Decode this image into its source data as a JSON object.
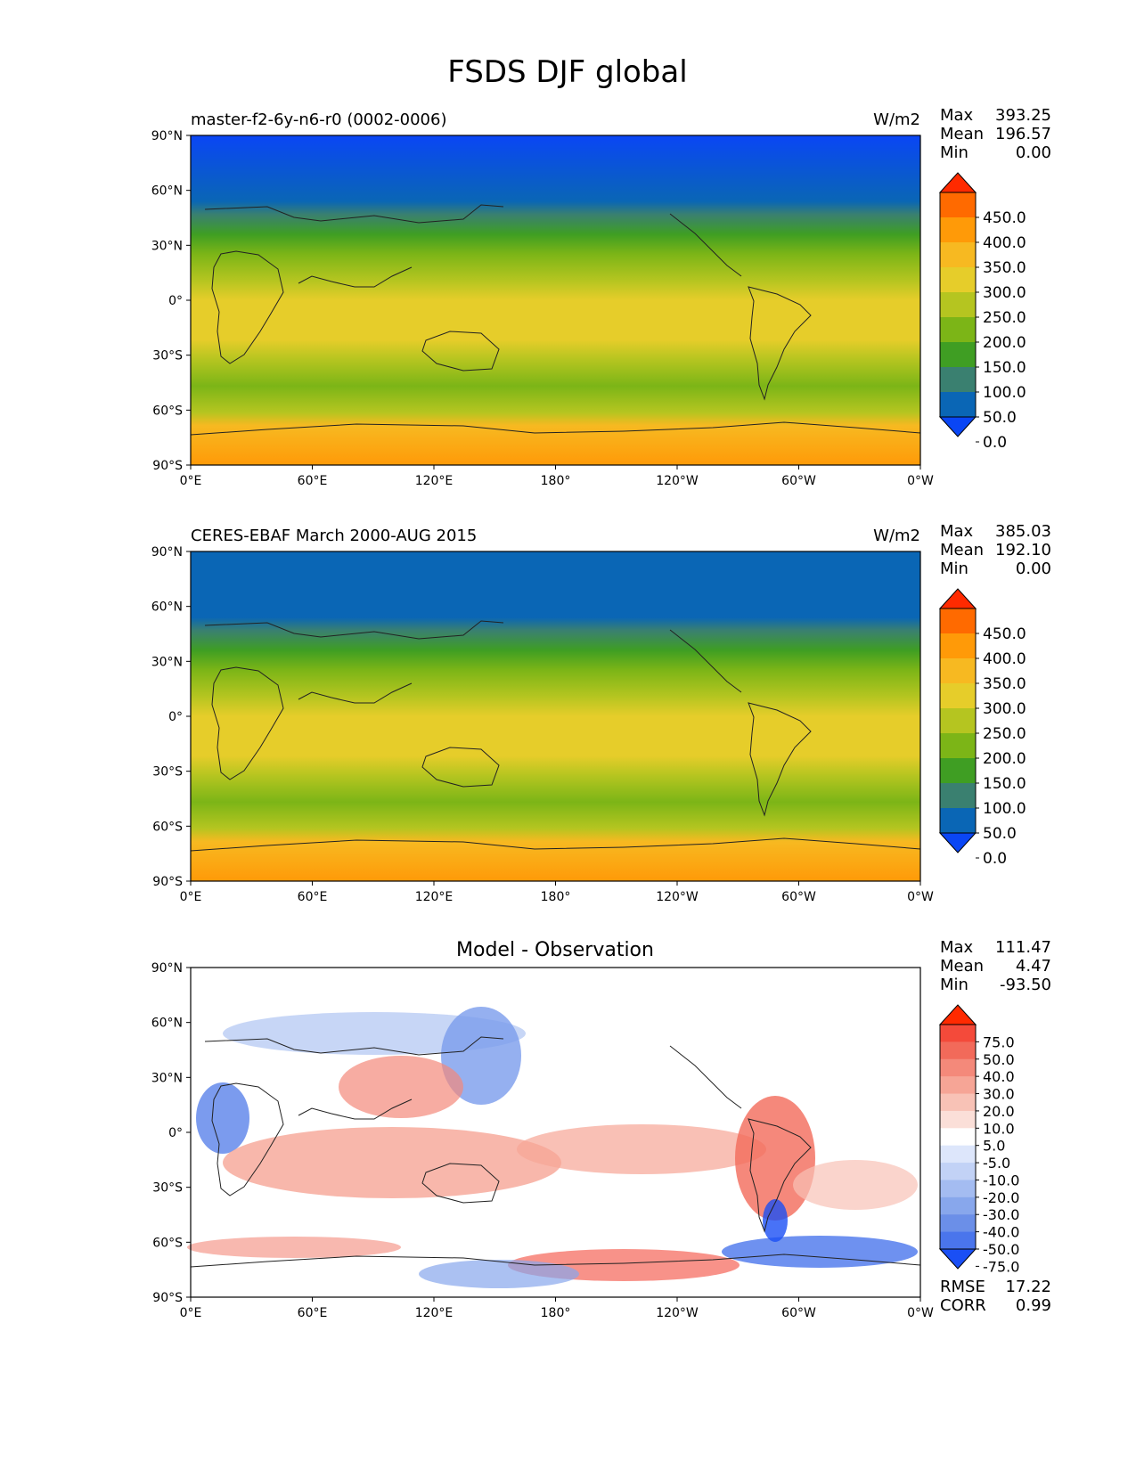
{
  "title": "FSDS DJF global",
  "units": "W/m2",
  "lat_ticks": [
    "90°N",
    "60°N",
    "30°N",
    "0°",
    "30°S",
    "60°S",
    "90°S"
  ],
  "lon_ticks": [
    "0°E",
    "60°E",
    "120°E",
    "180°",
    "120°W",
    "60°W",
    "0°W"
  ],
  "panels": [
    {
      "id": "model",
      "title": "master-f2-6y-n6-r0 (0002-0006)",
      "stats": [
        {
          "label": "Max",
          "value": "393.25"
        },
        {
          "label": "Mean",
          "value": "196.57"
        },
        {
          "label": "Min",
          "value": "0.00"
        }
      ]
    },
    {
      "id": "obs",
      "title": "CERES-EBAF March 2000-AUG 2015",
      "stats": [
        {
          "label": "Max",
          "value": "385.03"
        },
        {
          "label": "Mean",
          "value": "192.10"
        },
        {
          "label": "Min",
          "value": "0.00"
        }
      ]
    },
    {
      "id": "diff",
      "title": "Model - Observation",
      "stats": [
        {
          "label": "Max",
          "value": "111.47"
        },
        {
          "label": "Mean",
          "value": "4.47"
        },
        {
          "label": "Min",
          "value": "-93.50"
        }
      ],
      "metrics": [
        {
          "label": "RMSE",
          "value": "17.22"
        },
        {
          "label": "CORR",
          "value": "0.99"
        }
      ]
    }
  ],
  "colorbar_main": {
    "labels": [
      "450.0",
      "400.0",
      "350.0",
      "300.0",
      "250.0",
      "200.0",
      "150.0",
      "100.0",
      "50.0",
      "0.0"
    ],
    "colors": [
      "#ff2a00",
      "#ff6a00",
      "#ff9a08",
      "#f7b921",
      "#e6cd2a",
      "#b5c520",
      "#7cb517",
      "#3f9e23",
      "#3a8070",
      "#0a66b5",
      "#0a46f5"
    ]
  },
  "colorbar_diff": {
    "labels": [
      "75.0",
      "50.0",
      "40.0",
      "30.0",
      "20.0",
      "10.0",
      "5.0",
      "-5.0",
      "-10.0",
      "-20.0",
      "-30.0",
      "-40.0",
      "-50.0",
      "-75.0"
    ],
    "colors": [
      "#ff2a00",
      "#f44a3a",
      "#f26a5a",
      "#f4897a",
      "#f6a596",
      "#f8c2b6",
      "#fbdfd8",
      "#ffffff",
      "#dde6fb",
      "#c2d2f6",
      "#a4bcf1",
      "#88a7ec",
      "#6b8fe8",
      "#4a75ec",
      "#1a4ff5"
    ]
  },
  "chart_data": {
    "type": "heatmap",
    "variable": "FSDS",
    "season": "DJF",
    "region": "global",
    "units": "W/m2",
    "panels": [
      {
        "title": "master-f2-6y-n6-r0 (0002-0006)",
        "max": 393.25,
        "mean": 196.57,
        "min": 0.0
      },
      {
        "title": "CERES-EBAF March 2000-AUG 2015",
        "max": 385.03,
        "mean": 192.1,
        "min": 0.0
      },
      {
        "title": "Model - Observation",
        "max": 111.47,
        "mean": 4.47,
        "min": -93.5,
        "rmse": 17.22,
        "corr": 0.99
      }
    ],
    "contour_levels": [
      0,
      50,
      100,
      150,
      200,
      250,
      300,
      350,
      400,
      450
    ],
    "diff_levels": [
      -75,
      -50,
      -40,
      -30,
      -20,
      -10,
      -5,
      5,
      10,
      20,
      30,
      40,
      50,
      75
    ],
    "x_range": [
      0,
      360
    ],
    "y_range": [
      -90,
      90
    ]
  }
}
